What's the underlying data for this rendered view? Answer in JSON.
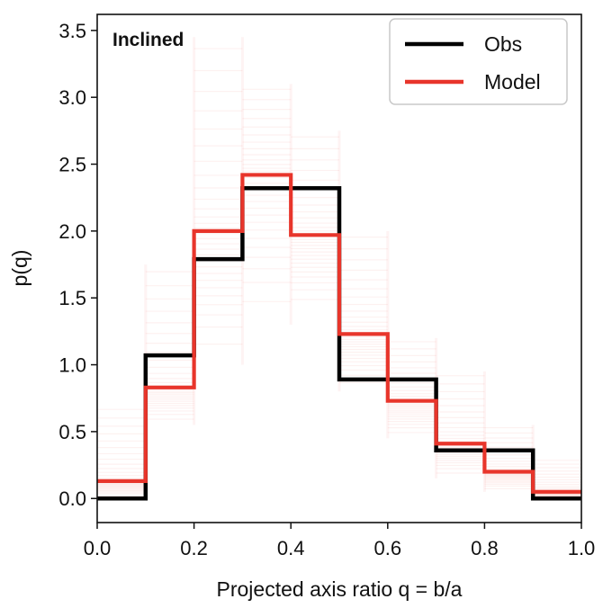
{
  "chart_data": {
    "type": "step-histogram",
    "title": "",
    "annotation": "Inclined",
    "xlabel": "Projected axis ratio q = b/a",
    "ylabel": "p(q)",
    "xlim": [
      0.0,
      1.0
    ],
    "ylim": [
      -0.18,
      3.62
    ],
    "x_ticks": [
      0.0,
      0.2,
      0.4,
      0.6,
      0.8,
      1.0
    ],
    "x_tick_labels": [
      "0.0",
      "0.2",
      "0.4",
      "0.6",
      "0.8",
      "1.0"
    ],
    "y_ticks": [
      0.0,
      0.5,
      1.0,
      1.5,
      2.0,
      2.5,
      3.0,
      3.5
    ],
    "y_tick_labels": [
      "0.0",
      "0.5",
      "1.0",
      "1.5",
      "2.0",
      "2.5",
      "3.0",
      "3.5"
    ],
    "bin_edges": [
      0.0,
      0.1,
      0.2,
      0.3,
      0.4,
      0.5,
      0.6,
      0.7,
      0.8,
      0.9,
      1.0
    ],
    "series": [
      {
        "name": "Obs",
        "color": "#000000",
        "values": [
          0.0,
          1.07,
          1.79,
          2.32,
          2.32,
          0.89,
          0.89,
          0.36,
          0.36,
          0.0
        ]
      },
      {
        "name": "Model",
        "color": "#e8352b",
        "values": [
          0.13,
          0.83,
          2.0,
          2.42,
          1.97,
          1.23,
          0.73,
          0.41,
          0.2,
          0.05
        ]
      }
    ],
    "model_spread": {
      "color": "#e8352b",
      "low": [
        0.0,
        0.55,
        1.0,
        1.3,
        1.4,
        0.8,
        0.45,
        0.15,
        0.05,
        0.0
      ],
      "high": [
        0.7,
        1.75,
        3.45,
        3.1,
        2.75,
        2.0,
        1.2,
        0.95,
        0.55,
        0.3
      ]
    },
    "legend": {
      "location": "top-right",
      "entries": [
        "Obs",
        "Model"
      ]
    }
  }
}
